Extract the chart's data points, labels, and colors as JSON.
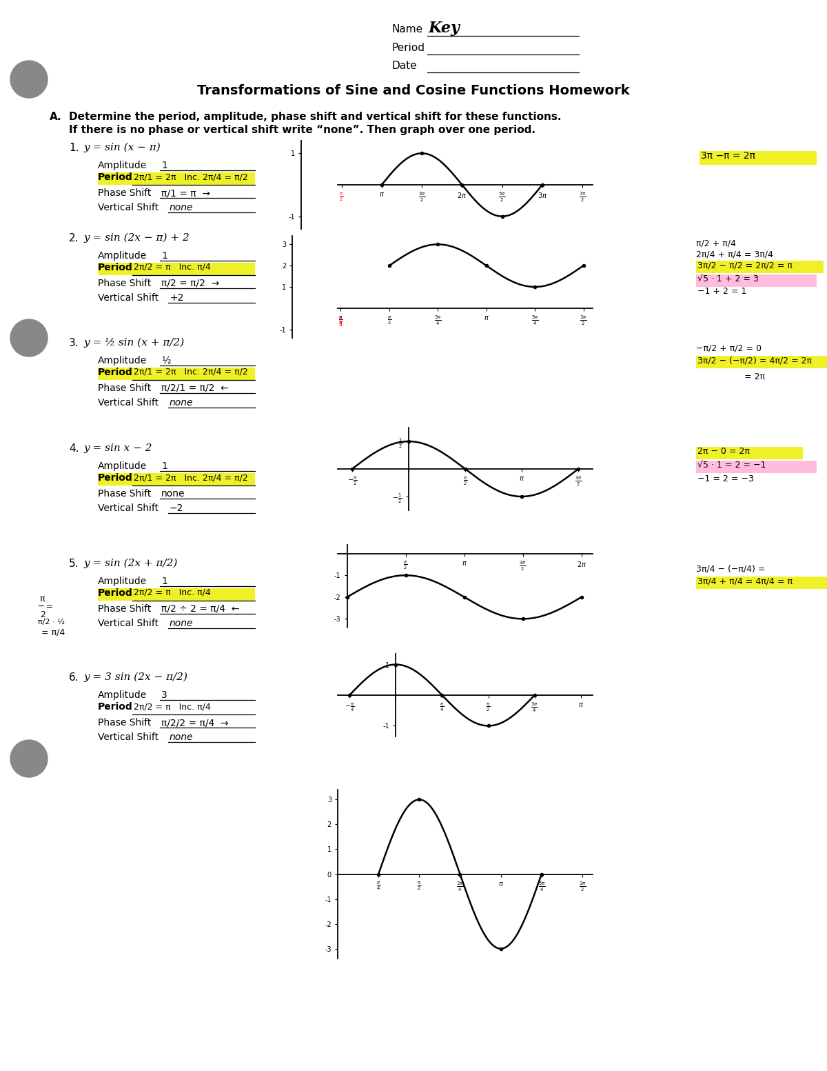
{
  "title": "Transformations of Sine and Cosine Functions Homework",
  "bg_color": "#ffffff",
  "problems": [
    {
      "num": "1.",
      "equation": "y = sin (x − π)",
      "amplitude": "1",
      "period_text": "2π/1 = 2π   Inc. 2π/4 = π/2",
      "phase_shift": "π/1 = π  →",
      "vertical_shift": "none",
      "side_note": "3π −π = 2π",
      "side_note_highlight": "yellow"
    },
    {
      "num": "2.",
      "equation": "y = sin (2x − π) + 2",
      "amplitude": "1",
      "period_text": "2π/2 = π   Inc. π/4",
      "phase_shift": "π/2 = π/2  →",
      "vertical_shift": "+2",
      "side_note1": "π/2 + π/4",
      "side_note2": "2π/4 + π/4 = 3π/4",
      "side_note3": "3π/2 − π/2 = 2π/2 = π",
      "side_note3_hl": "yellow",
      "side_note4": "√5 · 1 + 2 = 3",
      "side_note4_hl": "pink",
      "side_note5": "−1 + 2 = 1"
    },
    {
      "num": "3.",
      "equation": "y = ½ sin (x + π/2)",
      "amplitude": "½",
      "period_text": "2π/1 = 2π   Inc. 2π/4 = π/2",
      "phase_shift": "π/2/1 = π/2  ←",
      "vertical_shift": "none",
      "side_note1": "−π/2 + π/2 = 0",
      "side_note2": "3π/2 − (−π/2) = 4π/2 = 2π",
      "side_note2_hl": "yellow"
    },
    {
      "num": "4.",
      "equation": "y = sin x − 2",
      "amplitude": "1",
      "period_text": "2π/1 = 2π   Inc. 2π/4 = π/2",
      "phase_shift": "none",
      "vertical_shift": "−2",
      "side_note1": "2π − 0 = 2π",
      "side_note1_hl": "yellow",
      "side_note2": "√5 · 1 = 2 = −1",
      "side_note2_hl": "pink",
      "side_note3": "−1 = 2 = −3"
    },
    {
      "num": "5.",
      "equation": "y = sin (2x + π/2)",
      "amplitude": "1",
      "period_text": "2π/2 = π   Inc. π/4",
      "phase_shift": "π/2 ÷ 2 = π/4  ←",
      "vertical_shift": "none",
      "left_note1": "π",
      "left_note2": "―",
      "left_note3": "2",
      "side_note1": "3π/4 − (−π/4) =",
      "side_note2": "3π/4 + π/4 = 4π/4 = π",
      "side_note2_hl": "yellow"
    },
    {
      "num": "6.",
      "equation": "y = 3 sin (2x − π/2)",
      "amplitude": "3",
      "period_text": "2π/2 = π   Inc. π/4",
      "phase_shift": "π/2/2 = π/4  →",
      "vertical_shift": "none"
    }
  ]
}
